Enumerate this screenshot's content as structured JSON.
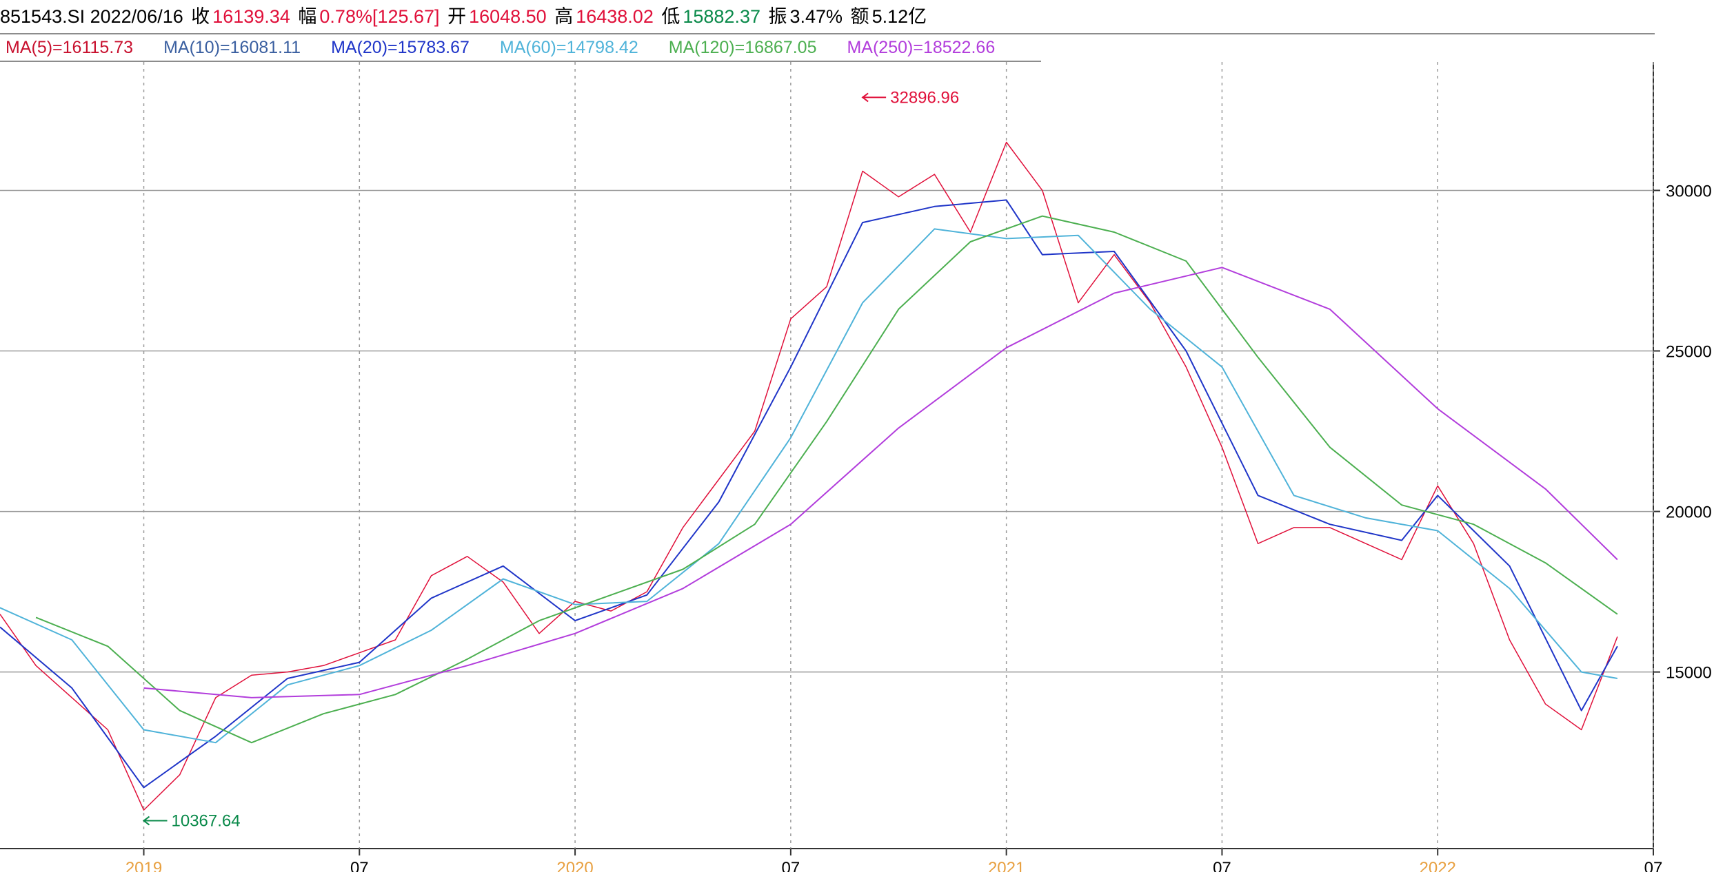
{
  "header": {
    "code_date": "851543.SI 2022/06/16",
    "close_label": "收",
    "close_value": "16139.34",
    "chg_label": "幅",
    "chg_value": "0.78%[125.67]",
    "open_label": "开",
    "open_value": "16048.50",
    "high_label": "高",
    "high_value": "16438.02",
    "low_label": "低",
    "low_value": "15882.37",
    "amp_label": "振",
    "amp_value": "3.47%",
    "amt_label": "额",
    "amt_value": "5.12亿"
  },
  "legend": [
    {
      "label": "MA(5)=16115.73",
      "color": "#c8102e"
    },
    {
      "label": "MA(10)=16081.11",
      "color": "#3a5fa0"
    },
    {
      "label": "MA(20)=15783.67",
      "color": "#1f35c8"
    },
    {
      "label": "MA(60)=14798.42",
      "color": "#4fb3d9"
    },
    {
      "label": "MA(120)=16867.05",
      "color": "#4caf50"
    },
    {
      "label": "MA(250)=18522.66",
      "color": "#b23ddc"
    }
  ],
  "chart_data": {
    "type": "line",
    "y_ticks": [
      "15000",
      "20000",
      "25000",
      "30000"
    ],
    "x_ticks": [
      {
        "label": "2019",
        "date": "2019-01",
        "color": "#e8a040"
      },
      {
        "label": "07",
        "date": "2019-07",
        "color": "#000000"
      },
      {
        "label": "2020",
        "date": "2020-01",
        "color": "#e8a040"
      },
      {
        "label": "07",
        "date": "2020-07",
        "color": "#000000"
      },
      {
        "label": "2021",
        "date": "2021-01",
        "color": "#e8a040"
      },
      {
        "label": "07",
        "date": "2021-07",
        "color": "#000000"
      },
      {
        "label": "2022",
        "date": "2022-01",
        "color": "#e8a040"
      },
      {
        "label": "07",
        "date": "2022-07",
        "color": "#000000"
      }
    ],
    "ylim": [
      9500,
      34000
    ],
    "xlim": [
      "2018-09",
      "2022-07"
    ],
    "annotations": [
      {
        "label": "32896.96",
        "color": "#e0103a",
        "date": "2020-09",
        "value": 32896.96
      },
      {
        "label": "10367.64",
        "color": "#0a8a4a",
        "date": "2019-01",
        "value": 10367.64
      }
    ],
    "series": [
      {
        "key": "price",
        "dates": [
          "2018-09",
          "2018-10",
          "2018-11",
          "2018-12",
          "2019-01",
          "2019-02",
          "2019-03",
          "2019-04",
          "2019-05",
          "2019-06",
          "2019-07",
          "2019-08",
          "2019-09",
          "2019-10",
          "2019-11",
          "2019-12",
          "2020-01",
          "2020-02",
          "2020-03",
          "2020-04",
          "2020-05",
          "2020-06",
          "2020-07",
          "2020-08",
          "2020-09",
          "2020-10",
          "2020-11",
          "2020-12",
          "2021-01",
          "2021-02",
          "2021-03",
          "2021-04",
          "2021-05",
          "2021-06",
          "2021-07",
          "2021-08",
          "2021-09",
          "2021-10",
          "2021-11",
          "2021-12",
          "2022-01",
          "2022-02",
          "2022-03",
          "2022-04",
          "2022-05",
          "2022-06"
        ],
        "values": [
          16800,
          15200,
          14200,
          13200,
          10700,
          11800,
          14200,
          14900,
          15000,
          15200,
          15600,
          16000,
          18000,
          18600,
          17800,
          16200,
          17200,
          16900,
          17500,
          19500,
          21000,
          22500,
          26000,
          27000,
          30600,
          29800,
          30500,
          28700,
          31500,
          30000,
          26500,
          28000,
          26500,
          24500,
          22000,
          19000,
          19500,
          19500,
          19000,
          18500,
          20800,
          19000,
          16000,
          14000,
          13200,
          16100
        ],
        "color": "#e0103a",
        "width": 1.5
      },
      {
        "key": "ma20",
        "dates": [
          "2018-09",
          "2018-11",
          "2019-01",
          "2019-03",
          "2019-05",
          "2019-07",
          "2019-09",
          "2019-11",
          "2020-01",
          "2020-03",
          "2020-05",
          "2020-07",
          "2020-09",
          "2020-11",
          "2021-01",
          "2021-02",
          "2021-04",
          "2021-06",
          "2021-08",
          "2021-10",
          "2021-12",
          "2022-01",
          "2022-03",
          "2022-05",
          "2022-06"
        ],
        "values": [
          16400,
          14500,
          11400,
          13000,
          14800,
          15300,
          17300,
          18300,
          16600,
          17400,
          20300,
          24500,
          29000,
          29500,
          29700,
          28000,
          28100,
          25000,
          20500,
          19600,
          19100,
          20500,
          18300,
          13800,
          15800
        ],
        "color": "#1f35c8",
        "width": 2
      },
      {
        "key": "ma60",
        "dates": [
          "2018-08",
          "2018-11",
          "2019-01",
          "2019-03",
          "2019-05",
          "2019-07",
          "2019-09",
          "2019-11",
          "2020-01",
          "2020-03",
          "2020-05",
          "2020-07",
          "2020-09",
          "2020-11",
          "2021-01",
          "2021-03",
          "2021-05",
          "2021-07",
          "2021-09",
          "2021-11",
          "2022-01",
          "2022-03",
          "2022-05",
          "2022-06"
        ],
        "values": [
          17500,
          16000,
          13200,
          12800,
          14600,
          15200,
          16300,
          17900,
          17100,
          17200,
          19000,
          22300,
          26500,
          28800,
          28500,
          28600,
          26300,
          24500,
          20500,
          19800,
          19400,
          17600,
          15000,
          14800
        ],
        "color": "#4fb3d9",
        "width": 2
      },
      {
        "key": "ma120",
        "dates": [
          "2018-10",
          "2018-12",
          "2019-02",
          "2019-04",
          "2019-06",
          "2019-08",
          "2019-10",
          "2019-12",
          "2020-02",
          "2020-04",
          "2020-06",
          "2020-08",
          "2020-10",
          "2020-12",
          "2021-02",
          "2021-04",
          "2021-06",
          "2021-08",
          "2021-10",
          "2021-12",
          "2022-02",
          "2022-04",
          "2022-06"
        ],
        "values": [
          16700,
          15800,
          13800,
          12800,
          13700,
          14300,
          15400,
          16600,
          17400,
          18200,
          19600,
          22800,
          26300,
          28400,
          29200,
          28700,
          27800,
          24800,
          22000,
          20200,
          19600,
          18400,
          16800
        ],
        "color": "#4caf50",
        "width": 2
      },
      {
        "key": "ma250",
        "dates": [
          "2019-01",
          "2019-04",
          "2019-07",
          "2019-10",
          "2020-01",
          "2020-04",
          "2020-07",
          "2020-10",
          "2021-01",
          "2021-04",
          "2021-07",
          "2021-10",
          "2022-01",
          "2022-04",
          "2022-06"
        ],
        "values": [
          14500,
          14200,
          14300,
          15200,
          16200,
          17600,
          19600,
          22600,
          25100,
          26800,
          27600,
          26300,
          23200,
          20700,
          18500
        ],
        "color": "#b23ddc",
        "width": 2
      }
    ]
  }
}
